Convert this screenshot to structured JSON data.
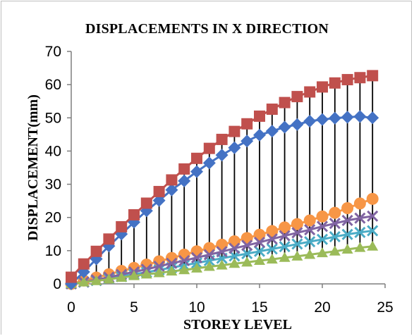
{
  "chart_data": {
    "type": "line",
    "title": "DISPLACEMENTS IN X DIRECTION",
    "xlabel": "STOREY LEVEL",
    "ylabel": "DISPLACEMENT(mm)",
    "xlim": [
      0,
      25
    ],
    "ylim": [
      0,
      70
    ],
    "xticks": [
      "0",
      "5",
      "10",
      "15",
      "20",
      "25"
    ],
    "yticks": [
      "0",
      "10",
      "20",
      "30",
      "40",
      "50",
      "60",
      "70"
    ],
    "grid": false,
    "x": [
      0,
      1,
      2,
      3,
      4,
      5,
      6,
      7,
      8,
      9,
      10,
      11,
      12,
      13,
      14,
      15,
      16,
      17,
      18,
      19,
      20,
      21,
      22,
      23,
      24
    ],
    "series": [
      {
        "color": "#4472C4",
        "marker": "diamond",
        "values": [
          0,
          3.6,
          7.5,
          11.4,
          15.0,
          18.6,
          22.0,
          25.1,
          28.3,
          31.0,
          33.8,
          36.4,
          38.8,
          41.0,
          43.0,
          44.8,
          46.0,
          47.2,
          48.0,
          49.0,
          49.5,
          49.9,
          50.2,
          50.4,
          50.0
        ]
      },
      {
        "color": "#C0504D",
        "marker": "square",
        "values": [
          2.0,
          6.0,
          9.8,
          13.5,
          17.2,
          20.8,
          24.3,
          27.8,
          31.3,
          34.6,
          37.8,
          40.8,
          43.5,
          45.9,
          48.2,
          50.5,
          52.6,
          54.6,
          56.4,
          57.8,
          59.3,
          60.5,
          61.5,
          62.1,
          62.7
        ]
      },
      {
        "color": "#9BBB59",
        "marker": "triangle",
        "values": [
          0,
          0.5,
          0.9,
          1.4,
          1.9,
          2.4,
          2.9,
          3.3,
          3.8,
          4.2,
          4.7,
          5.2,
          5.6,
          6.1,
          6.5,
          7.0,
          7.4,
          7.9,
          8.3,
          8.8,
          9.3,
          9.8,
          10.4,
          10.9,
          11.3
        ]
      },
      {
        "color": "#8064A2",
        "marker": "x",
        "values": [
          0,
          0.6,
          1.2,
          2.0,
          2.8,
          3.6,
          4.4,
          5.3,
          6.2,
          7.0,
          7.9,
          8.8,
          9.7,
          10.7,
          11.6,
          12.5,
          13.5,
          14.5,
          15.4,
          16.3,
          17.3,
          18.2,
          19.1,
          19.8,
          20.4
        ]
      },
      {
        "color": "#4BACC6",
        "marker": "x",
        "values": [
          0,
          0.5,
          1.0,
          1.6,
          2.2,
          2.9,
          3.5,
          4.2,
          4.9,
          5.6,
          6.3,
          7.0,
          7.7,
          8.4,
          9.1,
          9.8,
          10.5,
          11.2,
          12.0,
          12.7,
          13.4,
          14.2,
          14.9,
          15.5,
          16.0
        ]
      },
      {
        "color": "#F79646",
        "marker": "circle",
        "values": [
          0,
          1.0,
          1.9,
          2.9,
          3.9,
          4.8,
          5.8,
          6.8,
          7.8,
          8.8,
          9.8,
          10.8,
          11.8,
          12.8,
          13.8,
          14.8,
          15.9,
          17.0,
          18.0,
          19.1,
          20.3,
          21.4,
          22.8,
          24.2,
          25.6
        ]
      }
    ],
    "droplines": true
  }
}
